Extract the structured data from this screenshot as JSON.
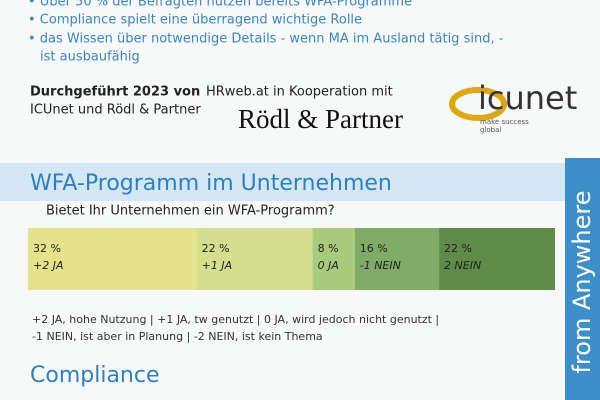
{
  "bullets": [
    "• Über 50 % der Befragten nutzen bereits WFA-Programme",
    "• Compliance spielt eine überragend wichtige Rolle",
    "• das Wissen über notwendige Details - wenn MA im Ausland tätig sind, -",
    "ist ausbaufähig"
  ],
  "intro": {
    "bold": "Durchgeführt 2023 von",
    "line1": "HRweb.at in Kooperation mit",
    "line2": "ICUnet und Rödl & Partner"
  },
  "logos": {
    "roedl": "Rödl & Partner",
    "icunet": "icunet",
    "icunet_tagline1": "make success",
    "icunet_tagline2": "global"
  },
  "section": {
    "title": "WFA-Programm im Unternehmen",
    "question": "Bietet Ihr Unternehmen ein WFA-Programm?"
  },
  "chart_data": {
    "type": "stacked-bar-100",
    "xlim": [
      0,
      100
    ],
    "segments": [
      {
        "value": 32,
        "value_label": "32 %",
        "label": "+2 JA",
        "color": "#e6e28c"
      },
      {
        "value": 22,
        "value_label": "22 %",
        "label": "+1 JA",
        "color": "#d3df8c"
      },
      {
        "value": 8,
        "value_label": "8 %",
        "label": "0 JA",
        "color": "#a9cb7c"
      },
      {
        "value": 16,
        "value_label": "16 %",
        "label": "-1 NEIN",
        "color": "#80ab66"
      },
      {
        "value": 22,
        "value_label": "22 %",
        "label": "2 NEIN",
        "color": "#5f8b48"
      }
    ]
  },
  "legend": [
    "+2 JA, hohe Nutzung  |  +1 JA, tw genutzt  |  0 JA, wird jedoch nicht genutzt  |",
    "-1 NEIN, ist aber in Planung  |  -2 NEIN, ist kein Thema"
  ],
  "compliance": {
    "title": "Compliance"
  },
  "side": "from Anywhere"
}
